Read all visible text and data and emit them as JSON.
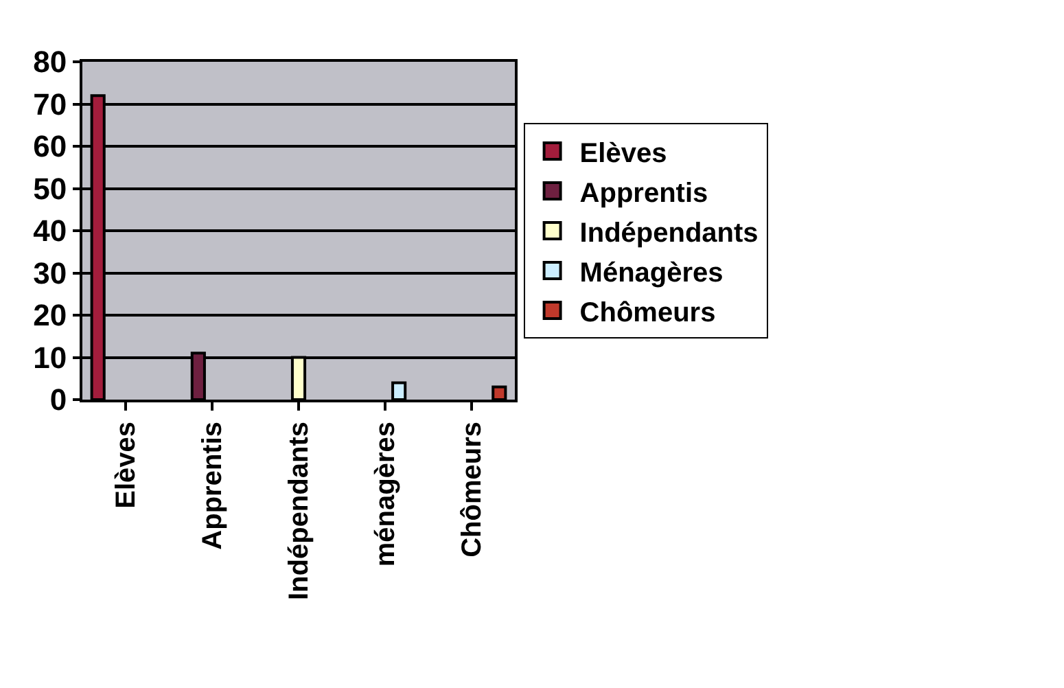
{
  "chart_data": {
    "type": "bar",
    "categories": [
      "Elèves",
      "Apprentis",
      "Indépendants",
      "ménagères",
      "Chômeurs"
    ],
    "series": [
      {
        "name": "Elèves",
        "color": "#a31d3c",
        "values": [
          72,
          null,
          null,
          null,
          null
        ]
      },
      {
        "name": "Apprentis",
        "color": "#6e2040",
        "values": [
          null,
          11,
          null,
          null,
          null
        ]
      },
      {
        "name": "Indépendants",
        "color": "#ffffcc",
        "values": [
          null,
          null,
          10,
          null,
          null
        ]
      },
      {
        "name": "Ménagères",
        "color": "#cceeff",
        "values": [
          null,
          null,
          null,
          4,
          null
        ]
      },
      {
        "name": "Chômeurs",
        "color": "#c0392b",
        "values": [
          null,
          null,
          null,
          null,
          3
        ]
      }
    ],
    "ylim": [
      0,
      80
    ],
    "yticks": [
      0,
      10,
      20,
      30,
      40,
      50,
      60,
      70,
      80
    ],
    "grid": "y",
    "legend": "right"
  }
}
